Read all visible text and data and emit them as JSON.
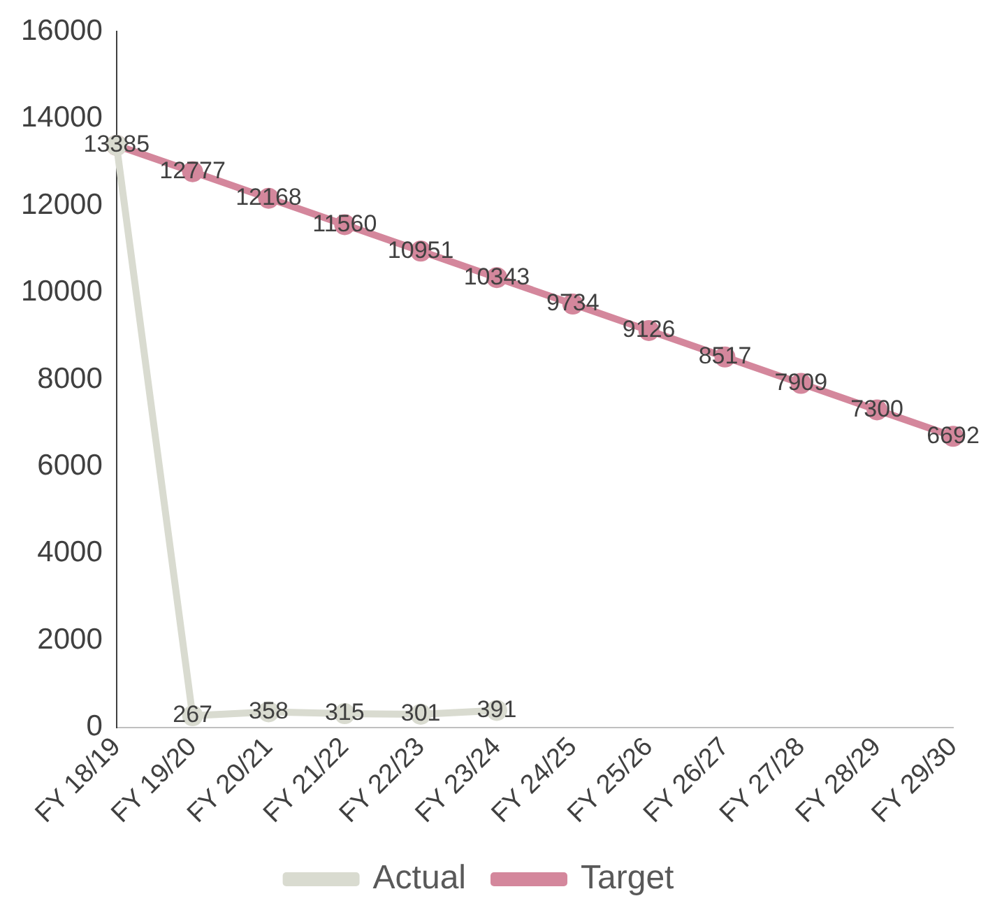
{
  "chart_data": {
    "type": "line",
    "categories": [
      "FY 18/19",
      "FY 19/20",
      "FY 20/21",
      "FY 21/22",
      "FY 22/23",
      "FY 23/24",
      "FY 24/25",
      "FY 25/26",
      "FY 26/27",
      "FY 27/28",
      "FY 28/29",
      "FY 29/30"
    ],
    "series": [
      {
        "name": "Actual",
        "color": "#d9dbd0",
        "values": [
          13385,
          267,
          358,
          315,
          301,
          391,
          null,
          null,
          null,
          null,
          null,
          null
        ],
        "value_labels": [
          null,
          "267",
          "358",
          "315",
          "301",
          "391",
          null,
          null,
          null,
          null,
          null,
          null
        ]
      },
      {
        "name": "Target",
        "color": "#d4879c",
        "values": [
          13385,
          12777,
          12168,
          11560,
          10951,
          10343,
          9734,
          9126,
          8517,
          7909,
          7300,
          6692
        ],
        "value_labels": [
          "13385",
          "12777",
          "12168",
          "11560",
          "10951",
          "10343",
          "9734",
          "9126",
          "8517",
          "7909",
          "7300",
          "6692"
        ]
      }
    ],
    "ylim": [
      0,
      16000
    ],
    "yticks": [
      0,
      2000,
      4000,
      6000,
      8000,
      10000,
      12000,
      14000,
      16000
    ],
    "grid": false,
    "legend": "bottom",
    "marker": "circle",
    "line_style": "solid"
  }
}
